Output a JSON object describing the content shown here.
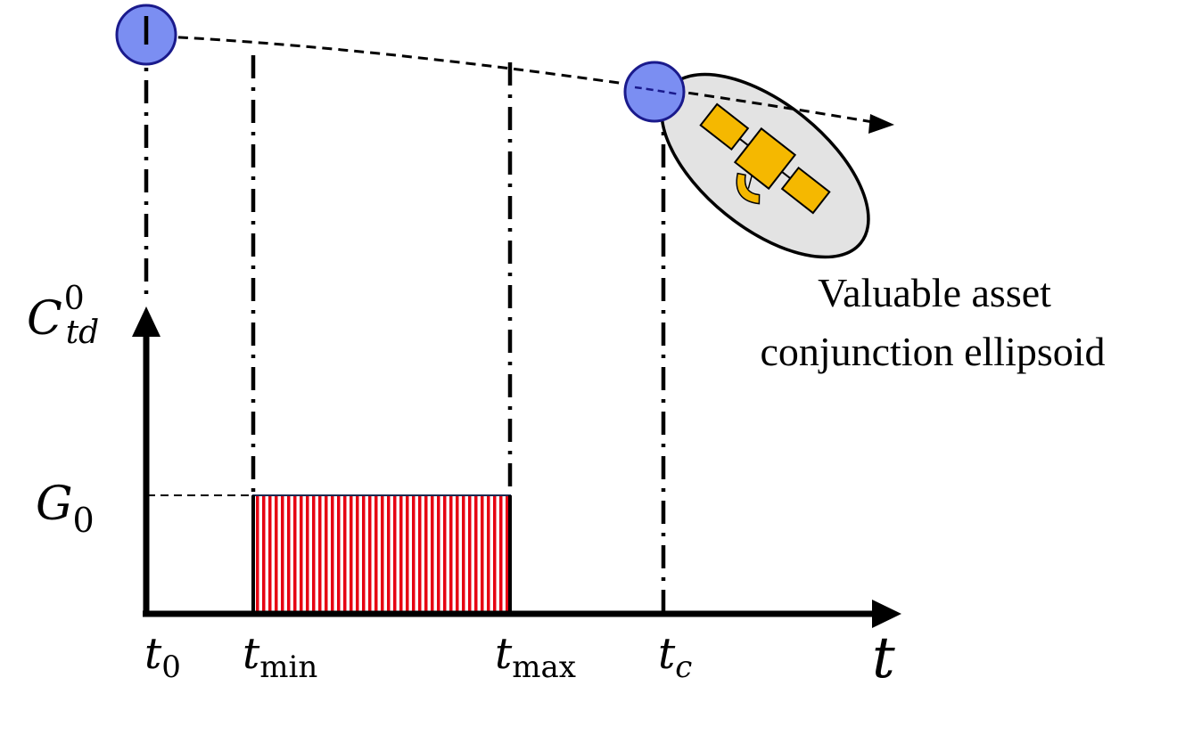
{
  "axes": {
    "y_label": {
      "base": "C",
      "sub": "td",
      "sup": "0"
    },
    "x_label": "t",
    "g_level_label": {
      "base": "G",
      "sub": "0"
    }
  },
  "ticks": {
    "t0": {
      "base": "t",
      "sub": "0"
    },
    "tmin": {
      "base": "t",
      "sub": "min"
    },
    "tmax": {
      "base": "t",
      "sub": "max"
    },
    "tc": {
      "base": "t",
      "sub": "c"
    }
  },
  "caption": {
    "line1": "Valuable asset",
    "line2": "conjunction ellipsoid"
  },
  "colors": {
    "debris_fill": "#7b8ef2",
    "debris_stroke": "#1a1a8c",
    "ellipsoid_fill": "#e3e3e3",
    "satellite_fill": "#f5b800",
    "hatch_red": "#e60012",
    "axis": "#000000"
  },
  "icons": {
    "satellite": "satellite-icon",
    "debris": "debris-object-icon"
  }
}
